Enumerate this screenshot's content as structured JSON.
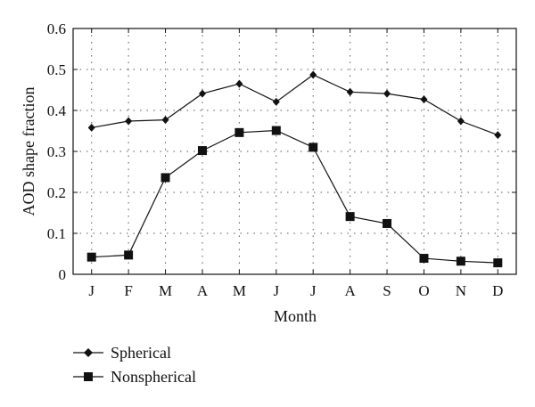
{
  "chart_data": {
    "type": "line",
    "categories": [
      "J",
      "F",
      "M",
      "A",
      "M",
      "J",
      "J",
      "A",
      "S",
      "O",
      "N",
      "D"
    ],
    "series": [
      {
        "name": "Spherical",
        "marker": "diamond",
        "values": [
          0.358,
          0.374,
          0.377,
          0.441,
          0.465,
          0.421,
          0.487,
          0.445,
          0.441,
          0.427,
          0.374,
          0.34
        ]
      },
      {
        "name": "Nonspherical",
        "marker": "square",
        "values": [
          0.042,
          0.047,
          0.236,
          0.302,
          0.346,
          0.351,
          0.31,
          0.141,
          0.124,
          0.039,
          0.032,
          0.028
        ]
      }
    ],
    "xlabel": "Month",
    "ylabel": "AOD shape fraction",
    "ylim": [
      0,
      0.6
    ],
    "yticks": [
      "0",
      "0.1",
      "0.2",
      "0.3",
      "0.4",
      "0.5",
      "0.6"
    ],
    "grid": true,
    "legend_position": "bottom-left",
    "line_color": "#111111"
  }
}
